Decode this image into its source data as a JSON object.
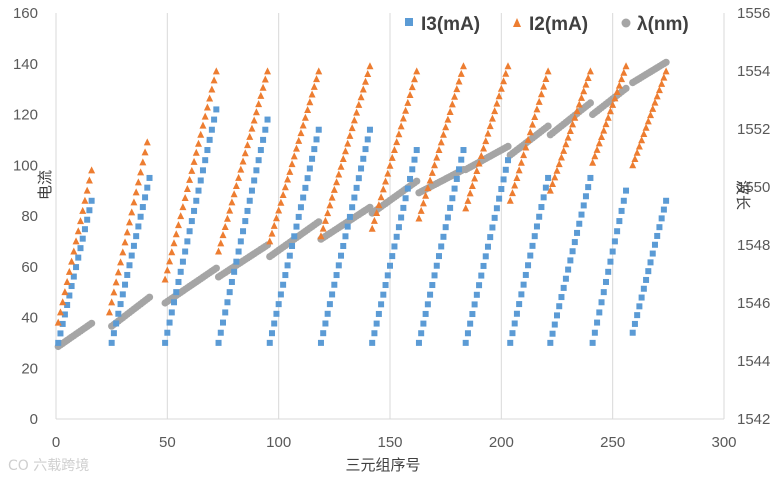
{
  "watermark": "CO 六载跨境",
  "chart_data": {
    "type": "scatter",
    "title": "",
    "xlabel": "三元组序号",
    "ylabel_left": "电流",
    "ylabel_right": "波长",
    "xlim": [
      0,
      300
    ],
    "ylim_left": [
      0,
      160
    ],
    "ylim_right": [
      1542,
      1556
    ],
    "x_ticks": [
      0,
      50,
      100,
      150,
      200,
      250,
      300
    ],
    "y_left_ticks": [
      0,
      20,
      40,
      60,
      80,
      100,
      120,
      140,
      160
    ],
    "y_right_ticks": [
      1542,
      1544,
      1546,
      1548,
      1550,
      1552,
      1554,
      1556
    ],
    "grid": "vertical",
    "legend_position": "top-right",
    "legend": [
      "I3(mA)",
      "I2(mA)",
      "λ(nm)"
    ],
    "colors": {
      "I3": "#5b9bd5",
      "I2": "#ed7d31",
      "lambda": "#a5a5a5"
    },
    "series_segments": {
      "I3": [
        {
          "x_start": 1,
          "x_end": 16,
          "y_start": 30,
          "y_end": 86
        },
        {
          "x_start": 25,
          "x_end": 42,
          "y_start": 30,
          "y_end": 95
        },
        {
          "x_start": 49,
          "x_end": 72,
          "y_start": 30,
          "y_end": 122
        },
        {
          "x_start": 73,
          "x_end": 95,
          "y_start": 30,
          "y_end": 118
        },
        {
          "x_start": 96,
          "x_end": 118,
          "y_start": 30,
          "y_end": 114
        },
        {
          "x_start": 119,
          "x_end": 141,
          "y_start": 30,
          "y_end": 114
        },
        {
          "x_start": 142,
          "x_end": 162,
          "y_start": 30,
          "y_end": 106
        },
        {
          "x_start": 163,
          "x_end": 183,
          "y_start": 30,
          "y_end": 106
        },
        {
          "x_start": 184,
          "x_end": 203,
          "y_start": 30,
          "y_end": 102
        },
        {
          "x_start": 204,
          "x_end": 221,
          "y_start": 30,
          "y_end": 95
        },
        {
          "x_start": 222,
          "x_end": 240,
          "y_start": 30,
          "y_end": 95
        },
        {
          "x_start": 241,
          "x_end": 256,
          "y_start": 30,
          "y_end": 90
        },
        {
          "x_start": 259,
          "x_end": 274,
          "y_start": 34,
          "y_end": 86
        }
      ],
      "I2": [
        {
          "x_start": 1,
          "x_end": 16,
          "y_start": 38,
          "y_end": 98
        },
        {
          "x_start": 24,
          "x_end": 41,
          "y_start": 42,
          "y_end": 109
        },
        {
          "x_start": 49,
          "x_end": 72,
          "y_start": 55,
          "y_end": 137
        },
        {
          "x_start": 73,
          "x_end": 95,
          "y_start": 66,
          "y_end": 137
        },
        {
          "x_start": 96,
          "x_end": 118,
          "y_start": 70,
          "y_end": 137
        },
        {
          "x_start": 119,
          "x_end": 141,
          "y_start": 72,
          "y_end": 139
        },
        {
          "x_start": 142,
          "x_end": 162,
          "y_start": 75,
          "y_end": 137
        },
        {
          "x_start": 163,
          "x_end": 183,
          "y_start": 79,
          "y_end": 139
        },
        {
          "x_start": 184,
          "x_end": 203,
          "y_start": 83,
          "y_end": 139
        },
        {
          "x_start": 204,
          "x_end": 221,
          "y_start": 86,
          "y_end": 137
        },
        {
          "x_start": 222,
          "x_end": 240,
          "y_start": 90,
          "y_end": 137
        },
        {
          "x_start": 241,
          "x_end": 256,
          "y_start": 101,
          "y_end": 139
        },
        {
          "x_start": 259,
          "x_end": 274,
          "y_start": 100,
          "y_end": 137
        }
      ],
      "lambda": [
        {
          "x_start": 1,
          "x_end": 16,
          "y_start": 1544.5,
          "y_end": 1545.3
        },
        {
          "x_start": 25,
          "x_end": 42,
          "y_start": 1545.2,
          "y_end": 1546.2
        },
        {
          "x_start": 49,
          "x_end": 72,
          "y_start": 1546.0,
          "y_end": 1547.2
        },
        {
          "x_start": 73,
          "x_end": 95,
          "y_start": 1546.9,
          "y_end": 1548.0
        },
        {
          "x_start": 96,
          "x_end": 118,
          "y_start": 1547.6,
          "y_end": 1548.8
        },
        {
          "x_start": 119,
          "x_end": 141,
          "y_start": 1548.2,
          "y_end": 1549.3
        },
        {
          "x_start": 142,
          "x_end": 162,
          "y_start": 1549.1,
          "y_end": 1550.2
        },
        {
          "x_start": 163,
          "x_end": 183,
          "y_start": 1549.8,
          "y_end": 1550.6
        },
        {
          "x_start": 184,
          "x_end": 203,
          "y_start": 1550.6,
          "y_end": 1551.4
        },
        {
          "x_start": 204,
          "x_end": 221,
          "y_start": 1551.1,
          "y_end": 1552.1
        },
        {
          "x_start": 222,
          "x_end": 240,
          "y_start": 1551.8,
          "y_end": 1552.9
        },
        {
          "x_start": 241,
          "x_end": 256,
          "y_start": 1552.5,
          "y_end": 1553.4
        },
        {
          "x_start": 259,
          "x_end": 274,
          "y_start": 1553.6,
          "y_end": 1554.3
        }
      ]
    }
  }
}
